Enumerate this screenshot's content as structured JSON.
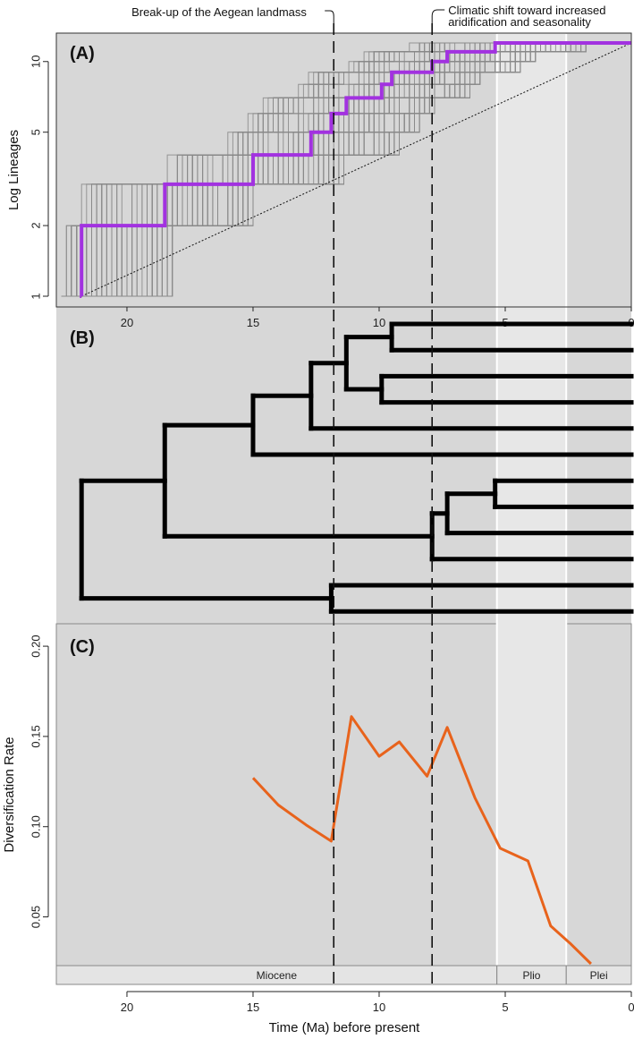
{
  "figure": {
    "annotations": {
      "aegean": "Break-up of the Aegean landmass",
      "climate_line1": "Climatic shift toward increased",
      "climate_line2": "aridification and seasonality"
    },
    "panel_labels": [
      "(A)",
      "(B)",
      "(C)"
    ],
    "event_times_ma": [
      11.8,
      7.9
    ],
    "epochs": [
      {
        "label": "Miocene",
        "start": 23.0,
        "end": 5.33
      },
      {
        "label": "Plio",
        "start": 5.33,
        "end": 2.58
      },
      {
        "label": "Plei",
        "start": 2.58,
        "end": 0
      }
    ],
    "colors": {
      "background": "#d7d7d7",
      "pliocene": "#e7e7e7",
      "ltt_mean": "#a232e0",
      "ltt_posterior": "#8a8a8a",
      "rate": "#e8631c",
      "tree": "#000000"
    }
  },
  "chart_data": [
    {
      "type": "line",
      "panel": "(A)",
      "title": "",
      "xlabel": "",
      "ylabel": "Log Lineages",
      "xlim": [
        22.8,
        0
      ],
      "ylim_log": [
        1,
        12
      ],
      "x_ticks": [
        20,
        15,
        10,
        5,
        0
      ],
      "y_ticks": [
        1,
        2,
        5,
        10
      ],
      "mean_ltt": {
        "name": "mean lineages-through-time",
        "steps": [
          {
            "t": 21.8,
            "n": 1
          },
          {
            "t": 21.8,
            "n": 2
          },
          {
            "t": 18.5,
            "n": 3
          },
          {
            "t": 15.0,
            "n": 4
          },
          {
            "t": 12.7,
            "n": 5
          },
          {
            "t": 11.9,
            "n": 6
          },
          {
            "t": 11.3,
            "n": 7
          },
          {
            "t": 9.9,
            "n": 8
          },
          {
            "t": 9.5,
            "n": 9
          },
          {
            "t": 7.9,
            "n": 10
          },
          {
            "t": 7.3,
            "n": 11
          },
          {
            "t": 5.4,
            "n": 12
          }
        ],
        "end_t": 0
      },
      "null_expectation": {
        "name": "pure-birth expectation",
        "from": [
          21.8,
          1
        ],
        "to": [
          0,
          12
        ]
      }
    },
    {
      "type": "tree",
      "panel": "(B)",
      "tips": 12,
      "nodes": [
        {
          "t": 21.8,
          "tips": [
            1,
            12
          ]
        },
        {
          "t": 18.5,
          "tips": [
            1,
            10
          ]
        },
        {
          "t": 15.0,
          "tips": [
            1,
            6
          ]
        },
        {
          "t": 12.7,
          "tips": [
            1,
            5
          ]
        },
        {
          "t": 11.3,
          "tips": [
            1,
            4
          ]
        },
        {
          "t": 9.5,
          "tips": [
            1,
            2
          ]
        },
        {
          "t": 9.9,
          "tips": [
            3,
            4
          ]
        },
        {
          "t": 7.9,
          "tips": [
            7,
            10
          ]
        },
        {
          "t": 7.3,
          "tips": [
            7,
            9
          ]
        },
        {
          "t": 5.4,
          "tips": [
            7,
            8
          ]
        },
        {
          "t": 11.9,
          "tips": [
            11,
            12
          ]
        }
      ]
    },
    {
      "type": "line",
      "panel": "(C)",
      "title": "",
      "xlabel": "Time (Ma) before present",
      "ylabel": "Diversification Rate",
      "xlim": [
        22.8,
        0
      ],
      "ylim": [
        0.023,
        0.205
      ],
      "x_ticks": [
        20,
        15,
        10,
        5,
        0
      ],
      "y_ticks": [
        0.05,
        0.1,
        0.15,
        0.2
      ],
      "y_tick_labels": [
        "0.05",
        "0.10",
        "0.15",
        "0.20"
      ],
      "series": [
        {
          "name": "diversification rate",
          "x": [
            15.0,
            14.0,
            12.9,
            11.9,
            11.1,
            10.0,
            9.2,
            8.1,
            7.3,
            6.2,
            5.2,
            4.1,
            3.2,
            2.4,
            1.6
          ],
          "values": [
            0.127,
            0.112,
            0.101,
            0.092,
            0.161,
            0.139,
            0.147,
            0.128,
            0.155,
            0.116,
            0.088,
            0.081,
            0.045,
            0.035,
            0.024
          ]
        }
      ]
    }
  ]
}
